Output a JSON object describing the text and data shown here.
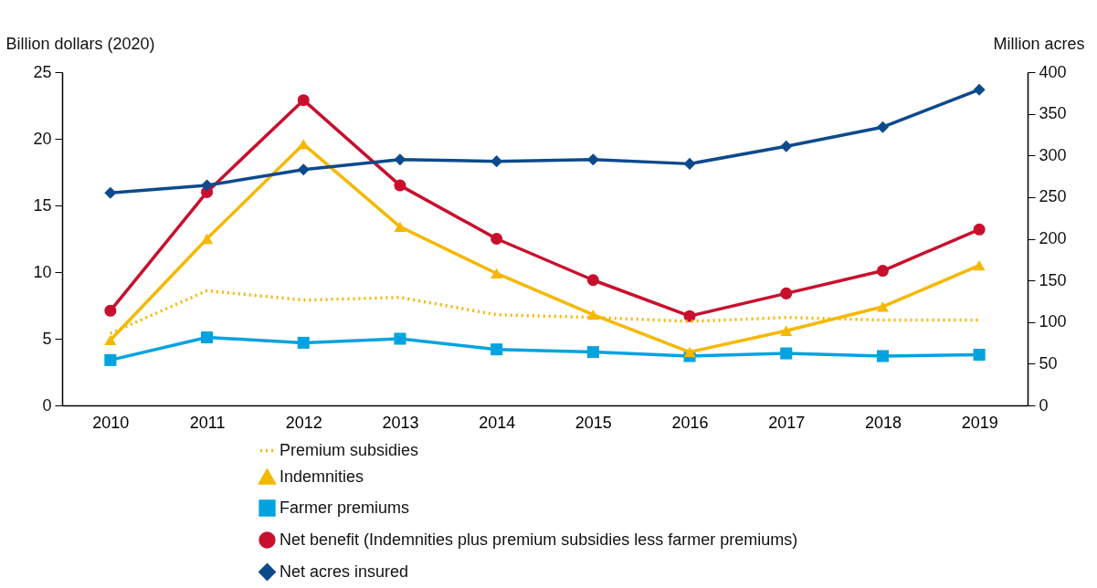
{
  "chart_data": {
    "type": "line",
    "ylabel": "Billion dollars (2020)",
    "y2label": "Million acres",
    "categories": [
      "2010",
      "2011",
      "2012",
      "2013",
      "2014",
      "2015",
      "2016",
      "2017",
      "2018",
      "2019"
    ],
    "ylim": [
      0,
      25
    ],
    "yticks": [
      0,
      5,
      10,
      15,
      20,
      25
    ],
    "y2lim": [
      0,
      400
    ],
    "y2ticks": [
      0,
      50,
      100,
      150,
      200,
      250,
      300,
      350,
      400
    ],
    "legend": "bottom",
    "grid": false,
    "series": [
      {
        "name": "Premium subsidies",
        "color": "#f5b800",
        "line_style": "dotted",
        "marker": "none",
        "values": [
          5.4,
          8.6,
          7.9,
          8.1,
          6.8,
          6.6,
          6.3,
          6.6,
          6.4,
          6.4
        ]
      },
      {
        "name": "Indemnities",
        "color": "#f5b800",
        "line_style": "solid",
        "marker": "triangle",
        "values": [
          4.9,
          12.5,
          19.6,
          13.4,
          9.9,
          6.8,
          4.0,
          5.6,
          7.4,
          10.5
        ]
      },
      {
        "name": "Farmer premiums",
        "color": "#00a3e0",
        "line_style": "solid",
        "marker": "square",
        "values": [
          3.4,
          5.1,
          4.7,
          5.0,
          4.2,
          4.0,
          3.7,
          3.9,
          3.7,
          3.8
        ]
      },
      {
        "name": "Net benefit (Indemnities plus premium subsidies less farmer premiums)",
        "color": "#c8102e",
        "line_style": "solid",
        "marker": "circle",
        "values": [
          7.1,
          16.0,
          22.9,
          16.5,
          12.5,
          9.4,
          6.7,
          8.4,
          10.1,
          13.2
        ]
      },
      {
        "name": "Net acres insured",
        "color": "#0d4a8c",
        "line_style": "solid",
        "marker": "diamond",
        "axis": "y2",
        "values": [
          255,
          264,
          283,
          295,
          293,
          295,
          290,
          311,
          334,
          379
        ]
      }
    ]
  }
}
